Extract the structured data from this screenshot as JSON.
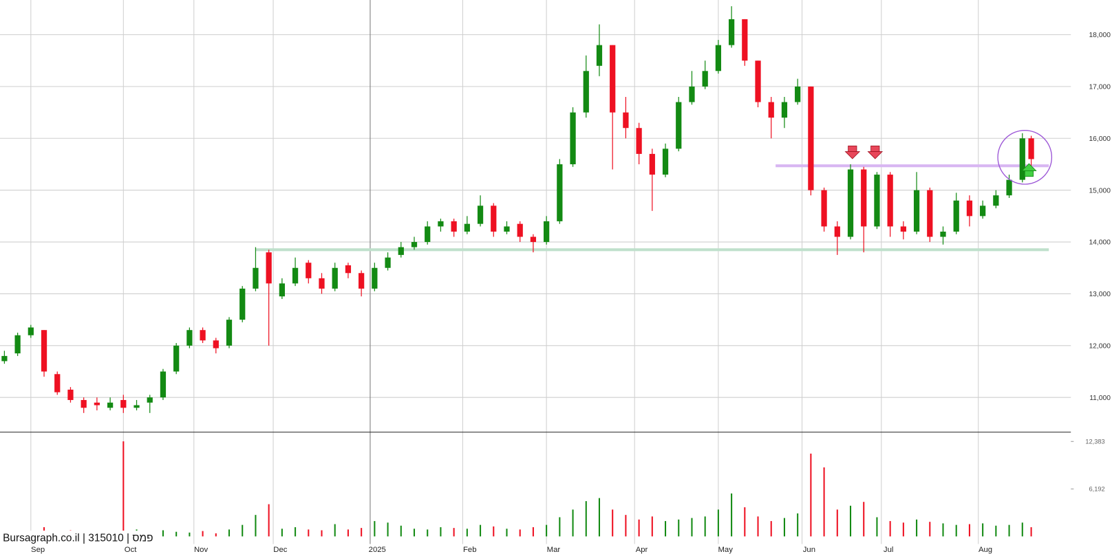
{
  "chart_data": {
    "type": "candlestick",
    "watermark": "Bursagraph.co.il | 315010 | פמס",
    "x": [
      0,
      3,
      6,
      9,
      12,
      15,
      18,
      21,
      24,
      27,
      30,
      33,
      36,
      39,
      42,
      45,
      48,
      51,
      54,
      57,
      60,
      63,
      66,
      69,
      72,
      75,
      78,
      81,
      84,
      87,
      90,
      93,
      96,
      99,
      102,
      105,
      108,
      111,
      114,
      117,
      120,
      123,
      126,
      129,
      132,
      135,
      138,
      141,
      144,
      147,
      150,
      153,
      156,
      159,
      162,
      165,
      168,
      171,
      174,
      177,
      180,
      183,
      186,
      189,
      192,
      195,
      198,
      201,
      204,
      207,
      210,
      213,
      216,
      219,
      222,
      225,
      228,
      231,
      233
    ],
    "open": [
      11700,
      11850,
      12200,
      12300,
      11450,
      11150,
      10950,
      10900,
      10800,
      10950,
      10800,
      10900,
      11000,
      11500,
      12000,
      12300,
      12100,
      12000,
      12500,
      13100,
      13800,
      12950,
      13200,
      13600,
      13300,
      13100,
      13550,
      13400,
      13100,
      13500,
      13750,
      13900,
      14000,
      14300,
      14400,
      14200,
      14350,
      14700,
      14200,
      14350,
      14100,
      14000,
      14400,
      15500,
      16500,
      17400,
      17800,
      16500,
      16200,
      15700,
      15300,
      15800,
      16700,
      17000,
      17300,
      17800,
      18300,
      17500,
      16700,
      16400,
      16700,
      17000,
      15000,
      14300,
      14100,
      15400,
      14300,
      15300,
      14300,
      14200,
      15000,
      14100,
      14200,
      14800,
      14500,
      14700,
      14900,
      15200,
      16000
    ],
    "high": [
      11900,
      12250,
      12400,
      12300,
      11500,
      11200,
      11000,
      11000,
      11000,
      11050,
      10950,
      11050,
      11550,
      12050,
      12350,
      12350,
      12150,
      12550,
      13150,
      13900,
      13850,
      13300,
      13700,
      13650,
      13400,
      13600,
      13600,
      13450,
      13600,
      13800,
      14000,
      14100,
      14400,
      14450,
      14450,
      14500,
      14900,
      14750,
      14400,
      14400,
      14150,
      14500,
      15600,
      16600,
      17600,
      18200,
      17800,
      16800,
      16300,
      15800,
      15900,
      16800,
      17300,
      17500,
      17900,
      18550,
      18300,
      17500,
      16800,
      16800,
      17150,
      17000,
      15050,
      14400,
      15500,
      15450,
      15350,
      15350,
      14400,
      15350,
      15050,
      14300,
      14950,
      14900,
      14800,
      15000,
      15300,
      16100,
      16050
    ],
    "low": [
      11650,
      11800,
      12150,
      11400,
      11050,
      10900,
      10700,
      10750,
      10750,
      10700,
      10750,
      10700,
      10950,
      11450,
      11950,
      12050,
      11850,
      11950,
      12450,
      13050,
      12000,
      12900,
      13150,
      13200,
      13000,
      13050,
      13300,
      12950,
      13050,
      13450,
      13700,
      13850,
      13950,
      14200,
      14100,
      14150,
      14300,
      14100,
      14150,
      14000,
      13800,
      13950,
      14350,
      15450,
      16400,
      17200,
      15400,
      16000,
      15500,
      14600,
      15250,
      15750,
      16650,
      16950,
      17250,
      17750,
      17400,
      16600,
      16000,
      16200,
      16650,
      14900,
      14200,
      13750,
      14050,
      13800,
      14250,
      14100,
      14050,
      14150,
      14000,
      13950,
      14150,
      14300,
      14450,
      14650,
      14850,
      15150,
      15450
    ],
    "close": [
      11800,
      12200,
      12350,
      11500,
      11100,
      10950,
      10800,
      10850,
      10900,
      10800,
      10850,
      11000,
      11500,
      12000,
      12300,
      12100,
      11950,
      12500,
      13100,
      13500,
      13200,
      13200,
      13500,
      13300,
      13100,
      13500,
      13400,
      13100,
      13500,
      13700,
      13900,
      14000,
      14300,
      14400,
      14200,
      14350,
      14700,
      14200,
      14300,
      14100,
      14000,
      14400,
      15500,
      16500,
      17300,
      17800,
      16500,
      16200,
      15700,
      15300,
      15800,
      16700,
      17000,
      17300,
      17800,
      18300,
      17500,
      16700,
      16400,
      16700,
      17000,
      15000,
      14300,
      14100,
      15400,
      14300,
      15300,
      14300,
      14200,
      15000,
      14100,
      14200,
      14800,
      14500,
      14700,
      14900,
      15200,
      16000,
      15600
    ],
    "volume": [
      300,
      400,
      500,
      1200,
      600,
      800,
      500,
      600,
      700,
      12400,
      900,
      700,
      800,
      600,
      500,
      700,
      400,
      900,
      1500,
      2800,
      4200,
      1000,
      1200,
      900,
      800,
      1600,
      900,
      1100,
      2000,
      1800,
      1400,
      1000,
      900,
      1200,
      1100,
      1000,
      1500,
      1300,
      1000,
      900,
      1200,
      1500,
      2500,
      3500,
      4600,
      5000,
      3500,
      2800,
      2200,
      2600,
      2000,
      2200,
      2400,
      2600,
      3500,
      5600,
      3800,
      2600,
      2000,
      2400,
      3000,
      10800,
      9000,
      3500,
      4000,
      4500,
      2500,
      2000,
      1800,
      2200,
      1900,
      1700,
      1500,
      1600,
      1700,
      1400,
      1500,
      1800,
      1200
    ],
    "up_color": "#138a13",
    "down_color": "#ee1122",
    "xlim": [
      -1,
      242
    ],
    "xticks": [
      {
        "value": 6,
        "label": "Sep"
      },
      {
        "value": 27,
        "label": "Oct"
      },
      {
        "value": 43,
        "label": "Nov"
      },
      {
        "value": 61,
        "label": "Dec"
      },
      {
        "value": 83,
        "label": "2025"
      },
      {
        "value": 104,
        "label": "Feb"
      },
      {
        "value": 123,
        "label": "Mar"
      },
      {
        "value": 143,
        "label": "Apr"
      },
      {
        "value": 162,
        "label": "May"
      },
      {
        "value": 181,
        "label": "Jun"
      },
      {
        "value": 199,
        "label": "Jul"
      },
      {
        "value": 221,
        "label": "Aug"
      }
    ],
    "ylim": [
      10330,
      18670
    ],
    "yticks": [
      {
        "value": 11000,
        "label": "11,000"
      },
      {
        "value": 12000,
        "label": "12,000"
      },
      {
        "value": 13000,
        "label": "13,000"
      },
      {
        "value": 14000,
        "label": "14,000"
      },
      {
        "value": 15000,
        "label": "15,000"
      },
      {
        "value": 16000,
        "label": "16,000"
      },
      {
        "value": 17000,
        "label": "17,000"
      },
      {
        "value": 18000,
        "label": "18,000"
      }
    ],
    "volume_ylim": [
      -1000,
      13600
    ],
    "volume_yticks": [
      {
        "value": 6192,
        "label": "6,192"
      },
      {
        "value": 12383,
        "label": "12,383"
      }
    ],
    "grid": true,
    "levels": [
      {
        "value": 15470,
        "color": "#d8b6f2",
        "x": [
          175,
          237
        ]
      },
      {
        "value": 13850,
        "color": "#bfe0cc",
        "x": [
          57,
          237
        ]
      }
    ]
  }
}
